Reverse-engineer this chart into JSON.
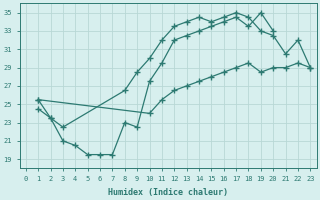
{
  "xlabel": "Humidex (Indice chaleur)",
  "bg_color": "#d7efee",
  "grid_color": "#b8d8d6",
  "line_color": "#2d7a72",
  "xlim": [
    -0.5,
    23.5
  ],
  "ylim": [
    18,
    36
  ],
  "yticks": [
    19,
    21,
    23,
    25,
    27,
    29,
    31,
    33,
    35
  ],
  "xticks": [
    0,
    1,
    2,
    3,
    4,
    5,
    6,
    7,
    8,
    9,
    10,
    11,
    12,
    13,
    14,
    15,
    16,
    17,
    18,
    19,
    20,
    21,
    22,
    23
  ],
  "line1_x": [
    1,
    2,
    3,
    4,
    5,
    6,
    7,
    8,
    9,
    10,
    11,
    12,
    13,
    14,
    15,
    16,
    17,
    18,
    19,
    20
  ],
  "line1_y": [
    24.5,
    23.5,
    21.0,
    20.5,
    19.5,
    19.5,
    19.5,
    23.0,
    22.5,
    27.5,
    29.5,
    32.0,
    32.5,
    33.0,
    33.5,
    34.0,
    34.5,
    33.5,
    35.0,
    33.0
  ],
  "line2_x": [
    1,
    2,
    3,
    8,
    9,
    10,
    11,
    12,
    13,
    14,
    15,
    16,
    17,
    18,
    19,
    20,
    21,
    22,
    23
  ],
  "line2_y": [
    25.5,
    23.5,
    22.5,
    26.5,
    28.5,
    30.0,
    32.0,
    33.5,
    34.0,
    34.5,
    34.0,
    34.5,
    35.0,
    34.5,
    33.0,
    32.5,
    30.5,
    32.0,
    29.0
  ],
  "line3_x": [
    1,
    10,
    11,
    12,
    13,
    14,
    15,
    16,
    17,
    18,
    19,
    20,
    21,
    22,
    23
  ],
  "line3_y": [
    25.5,
    24.0,
    25.5,
    26.5,
    27.0,
    27.5,
    28.0,
    28.5,
    29.0,
    29.5,
    28.5,
    29.0,
    29.0,
    29.5,
    29.0
  ]
}
